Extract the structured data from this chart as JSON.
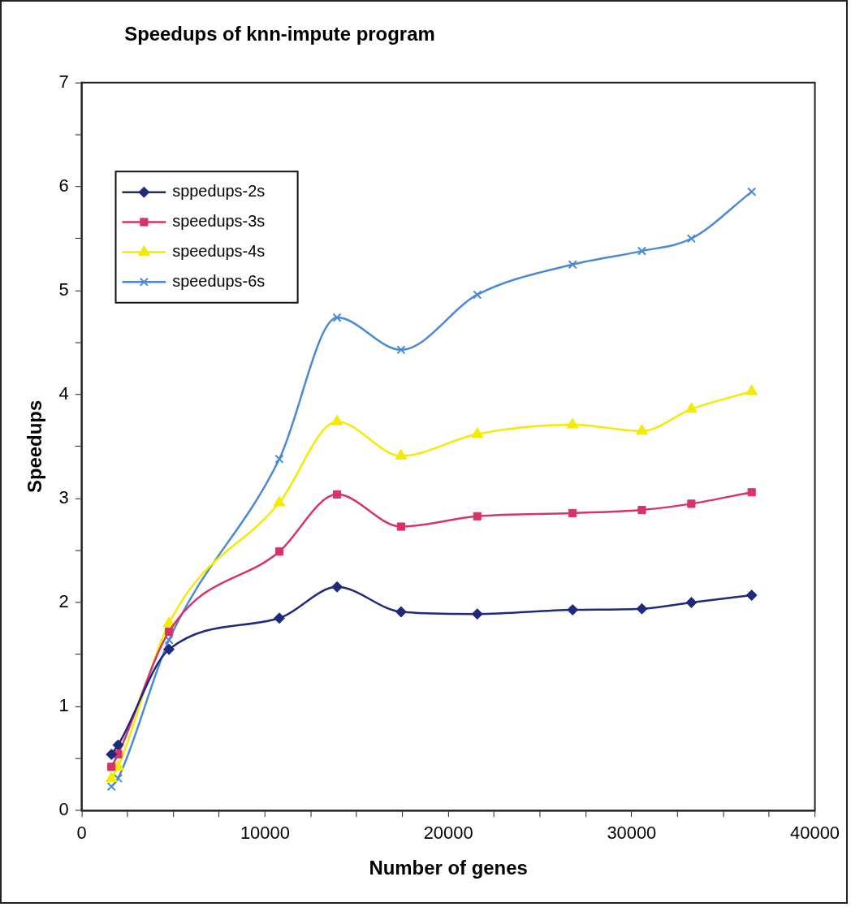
{
  "chart_data": {
    "type": "line",
    "title": "Speedups of knn-impute program",
    "xlabel": "Number of genes",
    "ylabel": "Speedups",
    "x": [
      1620,
      1985,
      4760,
      10780,
      13930,
      17420,
      21580,
      26780,
      30560,
      33260,
      36550
    ],
    "series": [
      {
        "name": "sppedups-2s",
        "color": "#1f2a7a",
        "marker": "diamond",
        "values": [
          0.54,
          0.63,
          1.55,
          1.85,
          2.15,
          1.91,
          1.89,
          1.93,
          1.94,
          2.0,
          2.07
        ]
      },
      {
        "name": "speedups-3s",
        "color": "#d6336c",
        "marker": "square",
        "values": [
          0.42,
          0.54,
          1.72,
          2.49,
          3.04,
          2.73,
          2.83,
          2.86,
          2.89,
          2.95,
          3.06
        ]
      },
      {
        "name": "speedups-4s",
        "color": "#f2ec00",
        "marker": "triangle",
        "values": [
          0.31,
          0.42,
          1.8,
          2.96,
          3.74,
          3.41,
          3.62,
          3.71,
          3.65,
          3.86,
          4.03
        ]
      },
      {
        "name": "speedups-6s",
        "color": "#4a8ad4",
        "marker": "cross",
        "values": [
          0.23,
          0.31,
          1.64,
          3.38,
          4.74,
          4.43,
          4.96,
          5.25,
          5.38,
          5.5,
          5.95
        ]
      }
    ],
    "xlim": [
      0,
      40000
    ],
    "xticks": [
      0,
      {
        "value": 2500,
        "label": null
      },
      {
        "value": 5000,
        "label": null
      },
      {
        "value": 7500,
        "label": null
      },
      10000,
      {
        "value": 12500,
        "label": null
      },
      {
        "value": 15000,
        "label": null
      },
      {
        "value": 17500,
        "label": null
      },
      20000,
      {
        "value": 22500,
        "label": null
      },
      {
        "value": 25000,
        "label": null
      },
      {
        "value": 27500,
        "label": null
      },
      30000,
      {
        "value": 32500,
        "label": null
      },
      {
        "value": 35000,
        "label": null
      },
      {
        "value": 37500,
        "label": null
      },
      40000
    ],
    "ylim": [
      0,
      7
    ],
    "yticks": [
      0,
      {
        "value": 0.5,
        "label": null
      },
      1,
      {
        "value": 1.5,
        "label": null
      },
      2,
      {
        "value": 2.5,
        "label": null
      },
      3,
      {
        "value": 3.5,
        "label": null
      },
      4,
      {
        "value": 4.5,
        "label": null
      },
      5,
      {
        "value": 5.5,
        "label": null
      },
      6,
      {
        "value": 6.5,
        "label": null
      },
      7
    ],
    "legend": "top left",
    "line_style": "solid"
  }
}
